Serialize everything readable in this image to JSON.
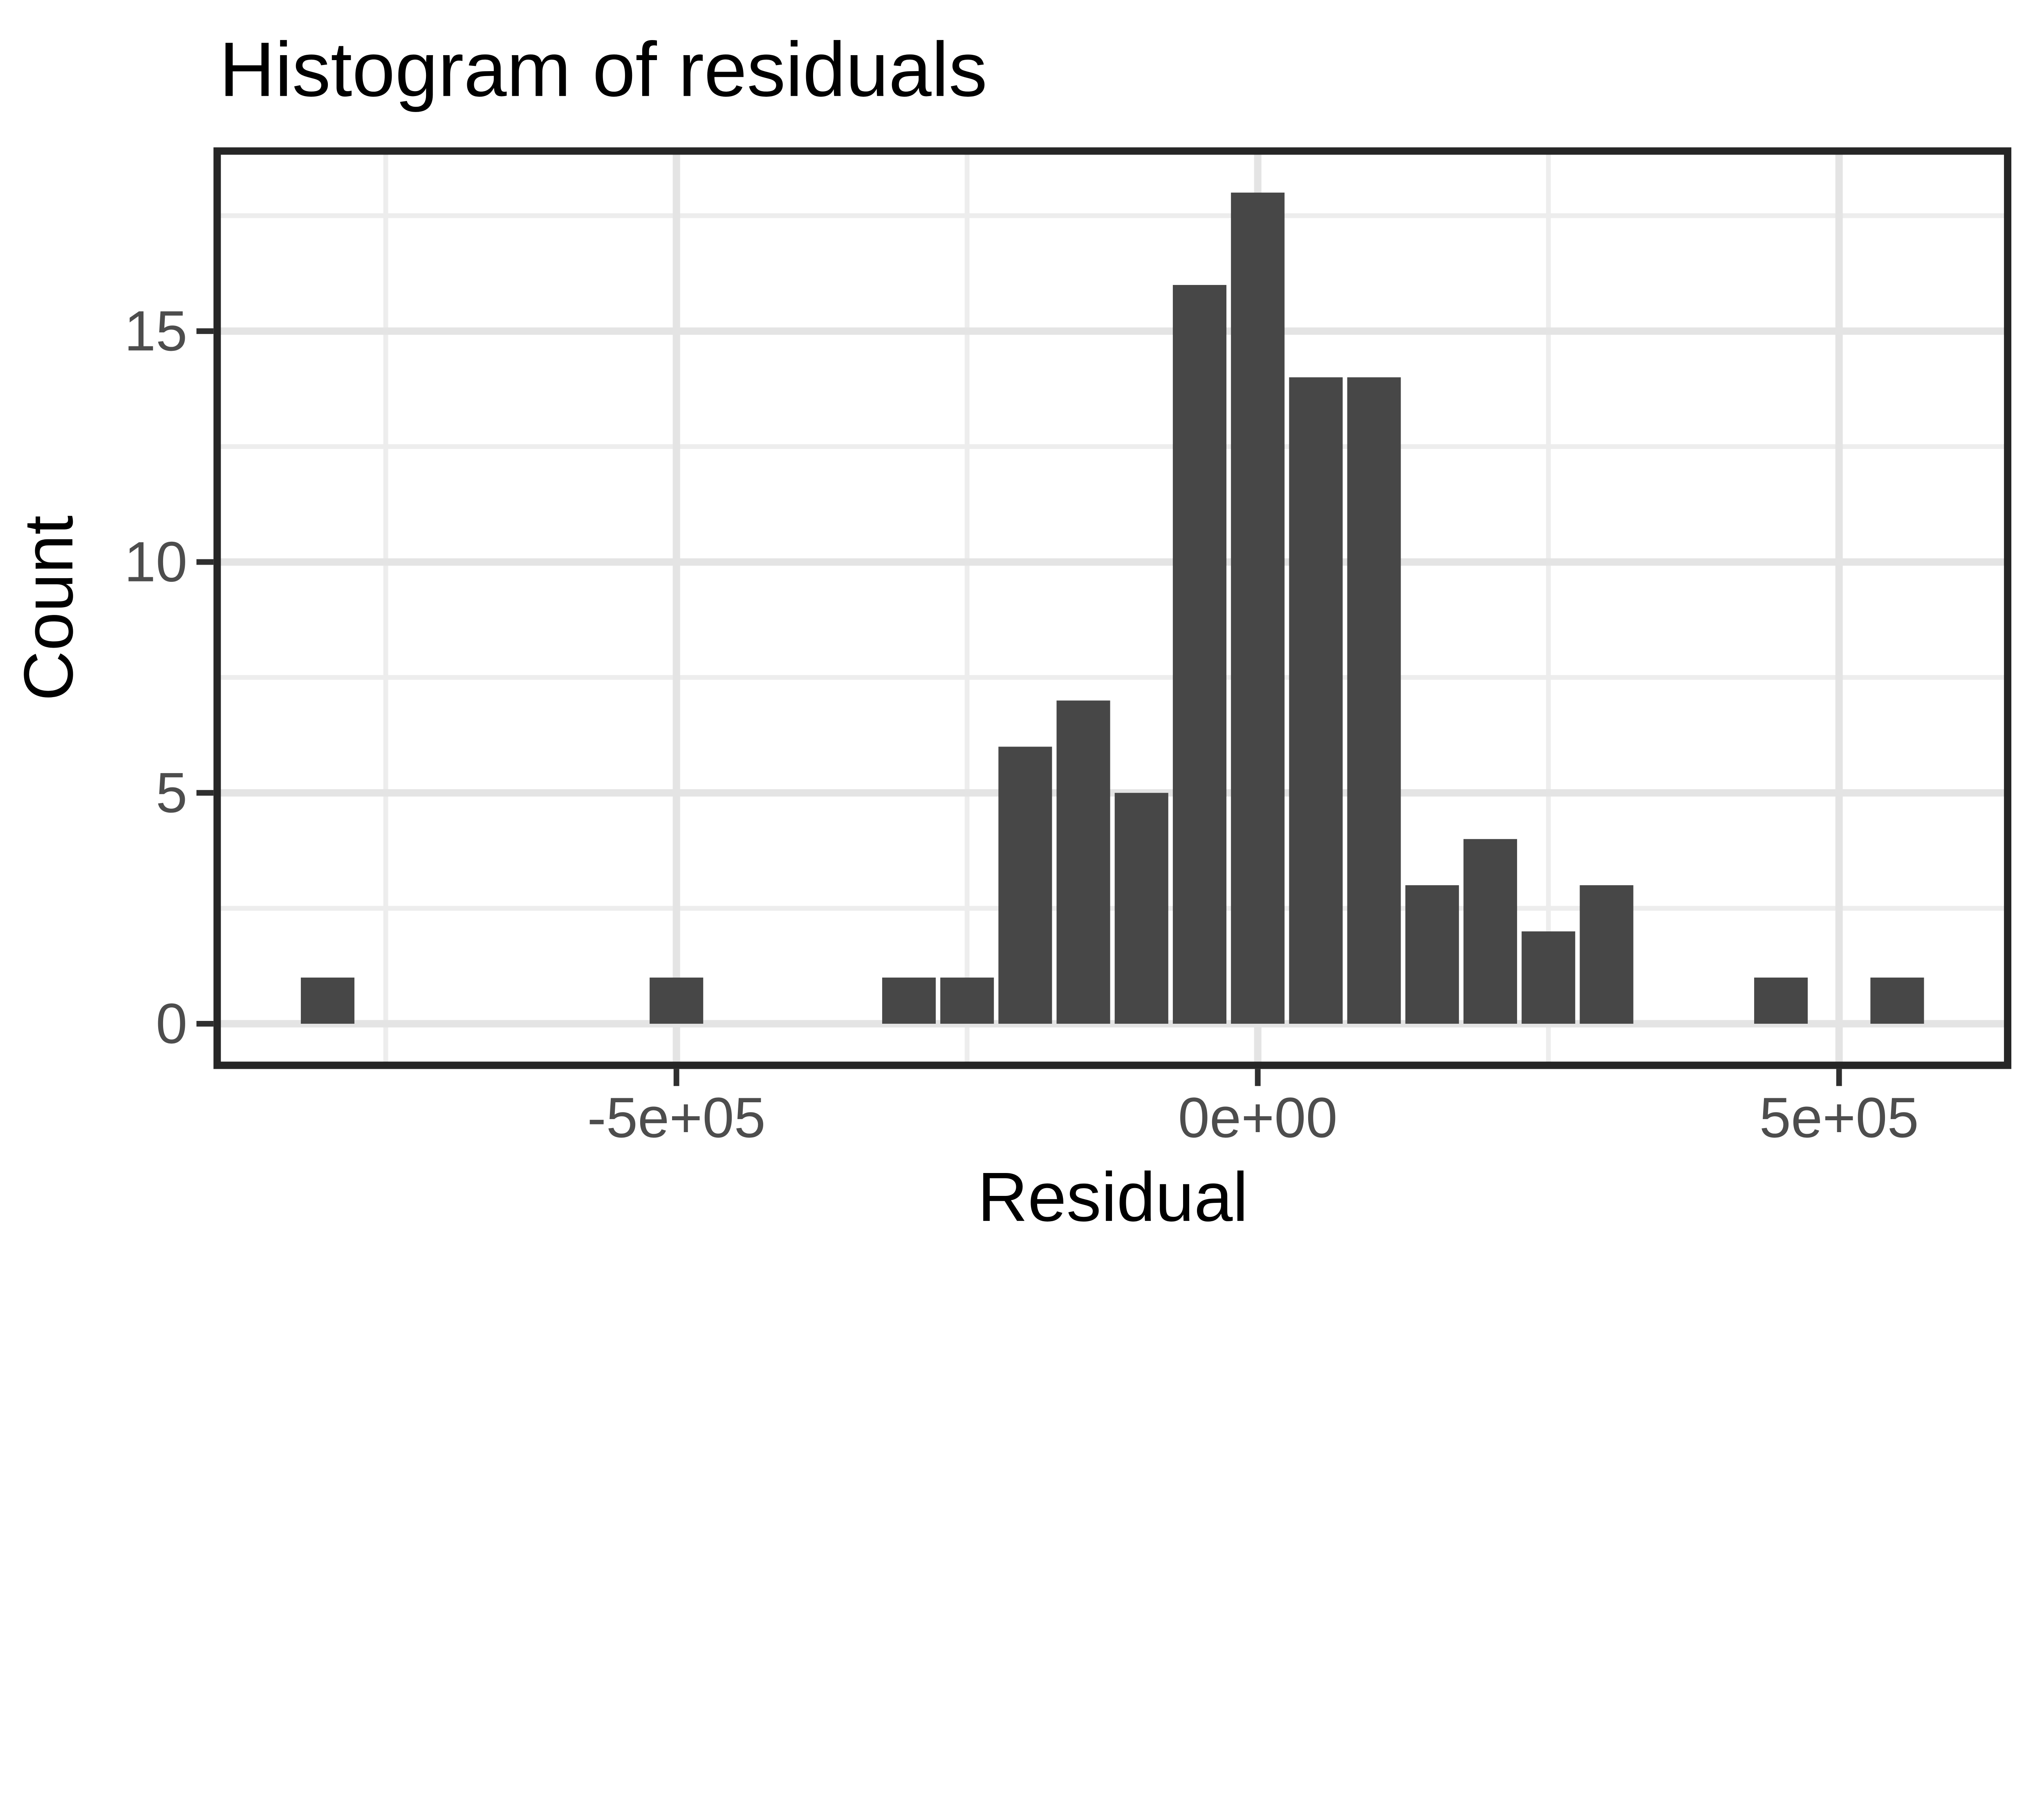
{
  "chart_data": {
    "type": "bar",
    "variant": "histogram",
    "title": "Histogram of residuals",
    "xlabel": "Residual",
    "ylabel": "Count",
    "legend": "none",
    "grid": "major+minor",
    "binwidth": 50000,
    "bins": [
      {
        "x": -800000,
        "count": 1
      },
      {
        "x": -500000,
        "count": 1
      },
      {
        "x": -300000,
        "count": 1
      },
      {
        "x": -250000,
        "count": 1
      },
      {
        "x": -200000,
        "count": 6
      },
      {
        "x": -150000,
        "count": 7
      },
      {
        "x": -100000,
        "count": 5
      },
      {
        "x": -50000,
        "count": 16
      },
      {
        "x": 0,
        "count": 18
      },
      {
        "x": 50000,
        "count": 14
      },
      {
        "x": 100000,
        "count": 14
      },
      {
        "x": 150000,
        "count": 3
      },
      {
        "x": 200000,
        "count": 4
      },
      {
        "x": 250000,
        "count": 2
      },
      {
        "x": 300000,
        "count": 3
      },
      {
        "x": 450000,
        "count": 1
      },
      {
        "x": 550000,
        "count": 1
      }
    ],
    "x_ticks": [
      {
        "value": -500000,
        "label": "-5e+05"
      },
      {
        "value": 0,
        "label": "0e+00"
      },
      {
        "value": 500000,
        "label": "5e+05"
      }
    ],
    "y_ticks": [
      {
        "value": 0,
        "label": "0"
      },
      {
        "value": 5,
        "label": "5"
      },
      {
        "value": 10,
        "label": "10"
      },
      {
        "value": 15,
        "label": "15"
      }
    ],
    "x_minor_breaks": [
      -750000,
      -250000,
      250000,
      750000
    ],
    "y_minor_breaks": [
      2.5,
      7.5,
      12.5,
      17.5
    ],
    "x_domain": [
      -895000,
      645000
    ],
    "y_domain": [
      -0.9,
      18.9
    ],
    "colors": {
      "background": "#ffffff",
      "bar_fill": "#474747",
      "bar_gap": "#ffffff",
      "panel_border": "#262626",
      "grid_major": "#e4e4e4",
      "grid_minor": "#ededed",
      "tick_mark": "#2f2f2f",
      "tick_label": "#4d4d4d",
      "text": "#000000"
    }
  }
}
